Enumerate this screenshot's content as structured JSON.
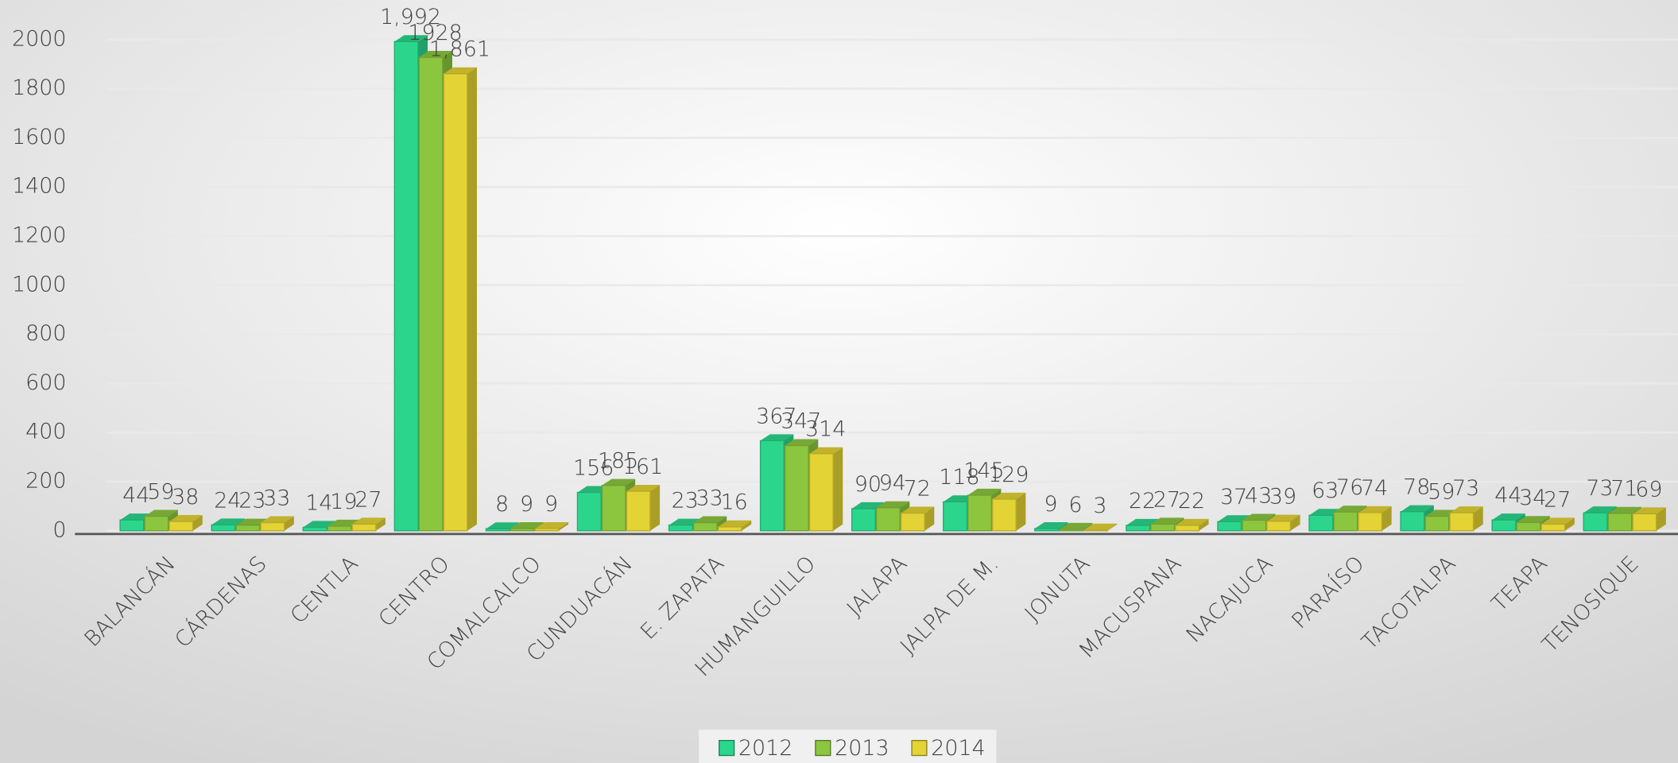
{
  "chart_data": {
    "type": "bar3d",
    "categories": [
      "BALANCÁN",
      "CÁRDENAS",
      "CENTLA",
      "CENTRO",
      "COMALCALCO",
      "CUNDUACÁN",
      "E. ZAPATA",
      "HUMANGUILLO",
      "JALAPA",
      "JALPA DE M.",
      "JONUTA",
      "MACUSPANA",
      "NACAJUCA",
      "PARAÍSO",
      "TACOTALPA",
      "TEAPA",
      "TENOSIQUE"
    ],
    "series": [
      {
        "name": "2012",
        "color": "#2bd68c",
        "values": [
          44,
          24,
          14,
          1992,
          8,
          156,
          23,
          367,
          90,
          118,
          9,
          22,
          37,
          63,
          78,
          44,
          73
        ],
        "value_labels": [
          "44",
          "24",
          "14",
          "1,992",
          "8",
          "156",
          "23",
          "367",
          "90",
          "118",
          "9",
          "22",
          "37",
          "63",
          "78",
          "44",
          "73"
        ]
      },
      {
        "name": "2013",
        "color": "#8cc63e",
        "values": [
          59,
          23,
          19,
          1928,
          9,
          185,
          33,
          347,
          94,
          145,
          6,
          27,
          43,
          76,
          59,
          34,
          71
        ]
      },
      {
        "name": "2014",
        "color": "#e3d334",
        "values": [
          38,
          33,
          27,
          1861,
          9,
          161,
          16,
          314,
          72,
          129,
          3,
          22,
          39,
          74,
          73,
          27,
          69
        ],
        "value_labels": [
          "38",
          "33",
          "27",
          "1,861",
          "9",
          "161",
          "16",
          "314",
          "72",
          "129",
          "3",
          "22",
          "39",
          "74",
          "73",
          "27",
          "69"
        ]
      }
    ],
    "ylim": [
      0,
      2000
    ],
    "yticks": [
      0,
      200,
      400,
      600,
      800,
      1000,
      1200,
      1400,
      1600,
      1800,
      2000
    ],
    "grid": true,
    "legend": "bottom"
  }
}
